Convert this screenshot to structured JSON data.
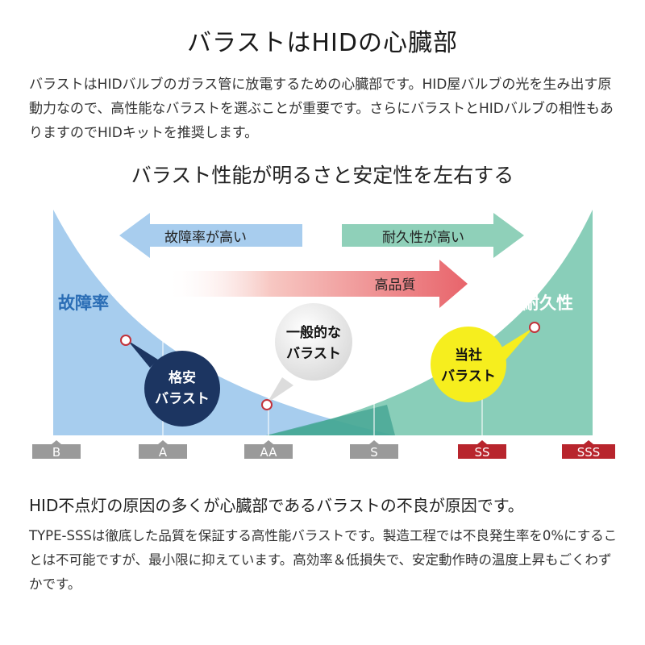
{
  "title": "バラストはHIDの心臓部",
  "intro": "バラストはHIDバルブのガラス管に放電するための心臓部です。HID屋バルブの光を生み出す原動力なので、高性能なバラストを選ぶことが重要です。さらにバラストとHIDバルブの相性もありますのでHIDキットを推奨します。",
  "diagram": {
    "heading": "バラスト性能が明るさと安定性を左右する",
    "arrow_left_label": "故障率が高い",
    "arrow_right_label": "耐久性が高い",
    "quality_arrow_label": "高品質",
    "left_curve_label": "故障率",
    "right_curve_label": "耐久性",
    "bubble_cheap": "格安\nバラスト",
    "bubble_general": "一般的な\nバラスト",
    "bubble_ours": "当社\nバラスト",
    "grades": [
      "B",
      "A",
      "AA",
      "S",
      "SS",
      "SSS"
    ],
    "colors": {
      "failure_blue": "#9fc8ec",
      "durability_green": "#5fbc9f",
      "cheap_navy": "#1c3561",
      "ours_yellow": "#f6ee1e",
      "grade_gray": "#9a9a9a",
      "grade_red": "#b8252d",
      "marker_red": "#c2323a"
    }
  },
  "bottom_heading": "HID不点灯の原因の多くが心臓部であるバラストの不良が原因です。",
  "bottom_text": "TYPE-SSSは徹底した品質を保証する高性能バラストです。製造工程では不良発生率を0%にすることは不可能ですが、最小限に抑えています。高効率＆低損失で、安定動作時の温度上昇もごくわずかです。"
}
